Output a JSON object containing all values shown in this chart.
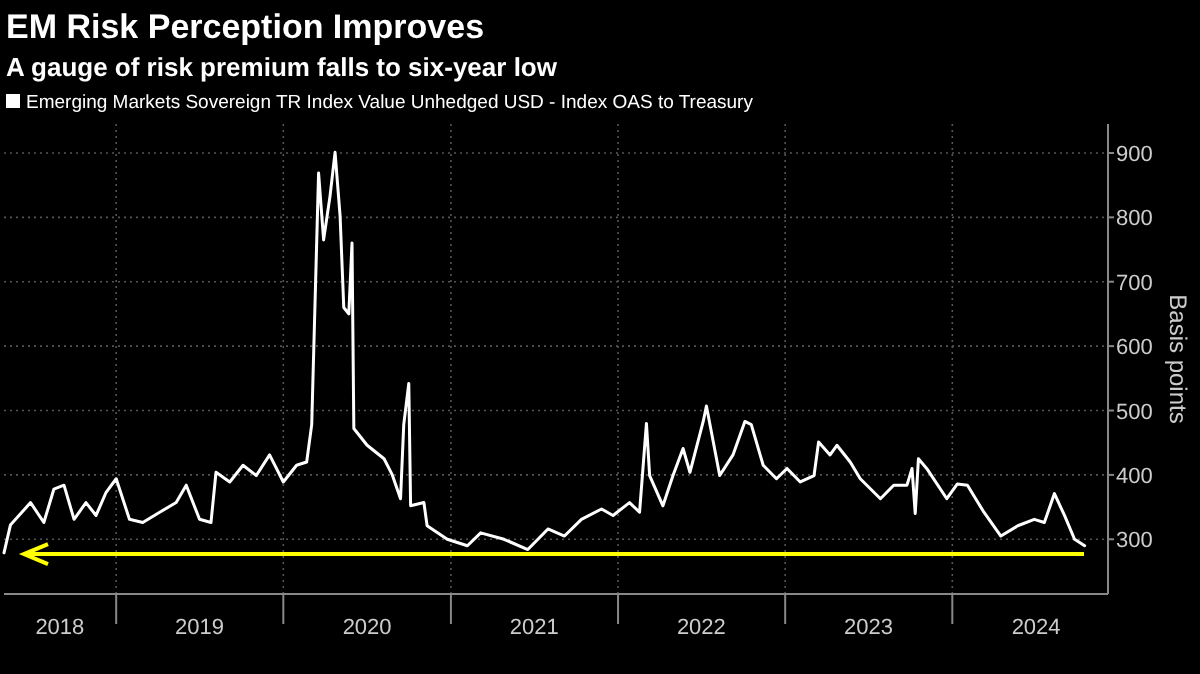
{
  "chart_data": {
    "type": "line",
    "title": "EM Risk Perception Improves",
    "subtitle": "A gauge of risk premium falls to six-year low",
    "ylabel": "Basis points",
    "legend": "top left",
    "grid": true,
    "xlim": [
      "2018-05-01",
      "2024-12-06"
    ],
    "xticks": [
      {
        "value": "2019-01-01",
        "label": null
      },
      {
        "value": "2020-01-01",
        "label": null
      },
      {
        "value": "2021-01-01",
        "label": null
      },
      {
        "value": "2022-01-01",
        "label": null
      },
      {
        "value": "2023-01-01",
        "label": null
      },
      {
        "value": "2024-01-01",
        "label": null
      },
      {
        "value": "2018-08-31",
        "label": "2018"
      },
      {
        "value": "2019-07-02",
        "label": "2019"
      },
      {
        "value": "2020-07-02",
        "label": "2020"
      },
      {
        "value": "2021-07-02",
        "label": "2021"
      },
      {
        "value": "2022-07-02",
        "label": "2022"
      },
      {
        "value": "2023-07-02",
        "label": "2023"
      },
      {
        "value": "2024-07-02",
        "label": "2024"
      }
    ],
    "ylim": [
      215,
      945
    ],
    "yticks": [
      300,
      400,
      500,
      600,
      700,
      800,
      900
    ],
    "ref_lines": [
      {
        "axis": "y",
        "value": 277,
        "color": "#ffff00"
      }
    ],
    "series": [
      {
        "name": "Emerging Markets Sovereign TR Index Value Unhedged USD - Index OAS to Treasury",
        "color": "#ffffff",
        "x": [
          "2018-05-01",
          "2018-05-15",
          "2018-06-28",
          "2018-07-27",
          "2018-08-18",
          "2018-09-09",
          "2018-10-01",
          "2018-10-27",
          "2018-11-18",
          "2018-12-10",
          "2019-01-01",
          "2019-01-30",
          "2019-02-28",
          "2019-04-06",
          "2019-05-12",
          "2019-06-03",
          "2019-07-02",
          "2019-07-27",
          "2019-08-07",
          "2019-09-06",
          "2019-10-05",
          "2019-11-03",
          "2019-12-02",
          "2020-01-01",
          "2020-01-30",
          "2020-02-21",
          "2020-03-03",
          "2020-03-18",
          "2020-03-29",
          "2020-04-12",
          "2020-04-23",
          "2020-05-04",
          "2020-05-12",
          "2020-05-23",
          "2020-05-30",
          "2020-06-03",
          "2020-07-02",
          "2020-08-08",
          "2020-08-26",
          "2020-09-13",
          "2020-09-20",
          "2020-10-01",
          "2020-10-05",
          "2020-11-03",
          "2020-11-10",
          "2020-12-24",
          "2021-02-06",
          "2021-03-07",
          "2021-04-27",
          "2021-06-18",
          "2021-08-01",
          "2021-09-06",
          "2021-10-13",
          "2021-11-26",
          "2021-12-21",
          "2022-01-26",
          "2022-02-17",
          "2022-03-04",
          "2022-03-11",
          "2022-04-09",
          "2022-05-01",
          "2022-05-23",
          "2022-06-07",
          "2022-07-06",
          "2022-07-13",
          "2022-08-11",
          "2022-09-09",
          "2022-10-05",
          "2022-10-19",
          "2022-11-14",
          "2022-12-13",
          "2023-01-05",
          "2023-02-03",
          "2023-03-05",
          "2023-03-15",
          "2023-04-09",
          "2023-04-24",
          "2023-05-23",
          "2023-06-14",
          "2023-07-28",
          "2023-08-26",
          "2023-09-24",
          "2023-10-05",
          "2023-10-12",
          "2023-10-19",
          "2023-11-06",
          "2023-12-20",
          "2024-01-12",
          "2024-02-03",
          "2024-03-10",
          "2024-04-16",
          "2024-05-23",
          "2024-06-28",
          "2024-07-20",
          "2024-08-11",
          "2024-09-02",
          "2024-09-24",
          "2024-10-16"
        ],
        "values": [
          279,
          322,
          357,
          326,
          378,
          384,
          331,
          357,
          337,
          373,
          394,
          331,
          326,
          342,
          357,
          384,
          331,
          326,
          404,
          389,
          415,
          399,
          431,
          389,
          415,
          420,
          478,
          869,
          765,
          833,
          901,
          802,
          660,
          650,
          760,
          472,
          446,
          425,
          400,
          363,
          478,
          542,
          352,
          357,
          321,
          300,
          290,
          310,
          300,
          284,
          316,
          305,
          331,
          347,
          337,
          357,
          342,
          480,
          399,
          352,
          399,
          441,
          404,
          483,
          507,
          399,
          431,
          483,
          478,
          415,
          394,
          410,
          389,
          399,
          451,
          431,
          446,
          420,
          394,
          363,
          384,
          384,
          410,
          340,
          425,
          410,
          363,
          386,
          384,
          342,
          305,
          321,
          331,
          326,
          371,
          337,
          300,
          290
        ]
      }
    ]
  }
}
